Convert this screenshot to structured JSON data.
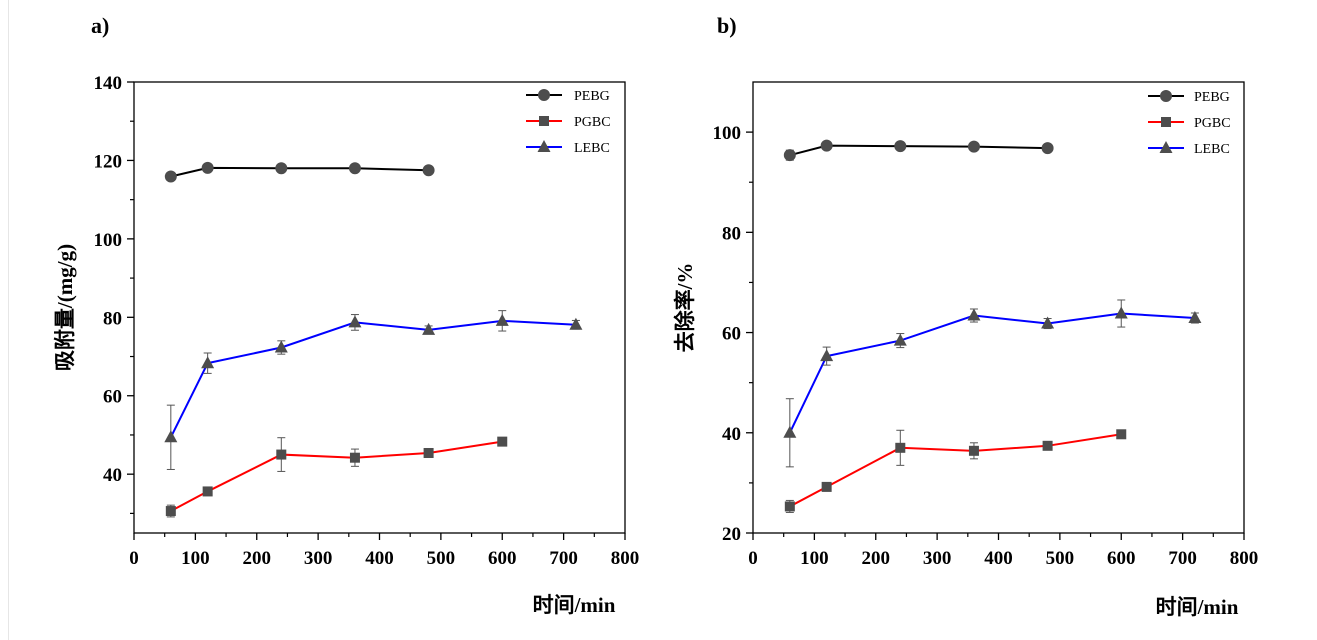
{
  "chart_data": [
    {
      "type": "line",
      "panel_label": "a)",
      "xlabel": "时间/min",
      "ylabel": "吸附量/(mg/g)",
      "xlim": [
        0,
        800
      ],
      "ylim": [
        25,
        140
      ],
      "xticks": [
        0,
        100,
        200,
        300,
        400,
        500,
        600,
        700,
        800
      ],
      "yticks": [
        40,
        60,
        80,
        100,
        120,
        140
      ],
      "grid": false,
      "legend_position": "top-right",
      "series": [
        {
          "name": "PEBG",
          "marker": "circle",
          "color": "#000000",
          "marker_color": "#4d4d4d",
          "x": [
            60,
            120,
            240,
            360,
            480
          ],
          "y": [
            115.9,
            118.1,
            118.0,
            118.0,
            117.5
          ],
          "err": [
            1.0,
            0.6,
            0.5,
            0.5,
            0.8
          ]
        },
        {
          "name": "PGBC",
          "marker": "square",
          "color": "#ff0000",
          "marker_color": "#4d4d4d",
          "x": [
            60,
            120,
            240,
            360,
            480,
            600
          ],
          "y": [
            30.6,
            35.6,
            45.0,
            44.2,
            45.4,
            48.3
          ],
          "err": [
            1.5,
            0.8,
            4.3,
            2.2,
            0.9,
            1.0
          ]
        },
        {
          "name": "LEBC",
          "marker": "triangle",
          "color": "#0000ff",
          "marker_color": "#4d4d4d",
          "x": [
            60,
            120,
            240,
            360,
            480,
            600,
            720
          ],
          "y": [
            49.4,
            68.3,
            72.3,
            78.7,
            76.8,
            79.1,
            78.1
          ],
          "err": [
            8.2,
            2.6,
            1.7,
            2.0,
            1.0,
            2.6,
            1.1
          ]
        }
      ]
    },
    {
      "type": "line",
      "panel_label": "b)",
      "xlabel": "时间/min",
      "ylabel": "去除率/%",
      "xlim": [
        0,
        800
      ],
      "ylim": [
        20,
        110
      ],
      "xticks": [
        0,
        100,
        200,
        300,
        400,
        500,
        600,
        700,
        800
      ],
      "yticks": [
        20,
        40,
        60,
        80,
        100
      ],
      "grid": false,
      "legend_position": "top-right",
      "series": [
        {
          "name": "PEBG",
          "marker": "circle",
          "color": "#000000",
          "marker_color": "#4d4d4d",
          "x": [
            60,
            120,
            240,
            360,
            480
          ],
          "y": [
            95.4,
            97.3,
            97.2,
            97.1,
            96.8
          ],
          "err": [
            1.0,
            0.5,
            0.5,
            0.4,
            0.6
          ]
        },
        {
          "name": "PGBC",
          "marker": "square",
          "color": "#ff0000",
          "marker_color": "#4d4d4d",
          "x": [
            60,
            120,
            240,
            360,
            480,
            600
          ],
          "y": [
            25.3,
            29.2,
            37.0,
            36.4,
            37.4,
            39.7
          ],
          "err": [
            1.2,
            0.6,
            3.5,
            1.6,
            0.7,
            0.8
          ]
        },
        {
          "name": "LEBC",
          "marker": "triangle",
          "color": "#0000ff",
          "marker_color": "#4d4d4d",
          "x": [
            60,
            120,
            240,
            360,
            480,
            600,
            720
          ],
          "y": [
            40.0,
            55.3,
            58.4,
            63.4,
            61.8,
            63.8,
            62.9
          ],
          "err": [
            6.8,
            1.8,
            1.4,
            1.3,
            1.0,
            2.7,
            1.0
          ]
        }
      ]
    }
  ]
}
